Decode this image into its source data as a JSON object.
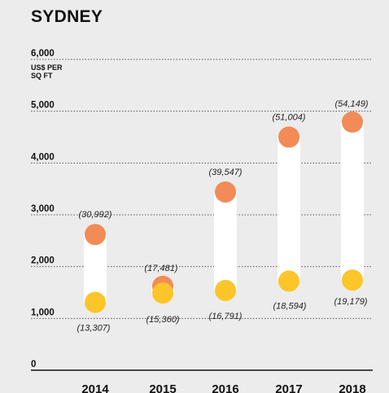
{
  "chart_data": {
    "type": "scatter",
    "title": "SYDNEY",
    "ylabel": "US$ PER SQ FT",
    "ylim": [
      0,
      6000
    ],
    "yticks": [
      "0",
      "1,000",
      "2,000",
      "3,000",
      "4,000",
      "5,000",
      "6,000"
    ],
    "grid": true,
    "categories": [
      "2014",
      "2015",
      "2016",
      "2017",
      "2018"
    ],
    "series": [
      {
        "color": "#f28b55",
        "values": [
          2620,
          1620,
          3440,
          4500,
          4790
        ],
        "labels": [
          "(30,992)",
          "(17,481)",
          "(39,547)",
          "(51,004)",
          "(54,149)"
        ]
      },
      {
        "color": "#fcc52a",
        "values": [
          1310,
          1490,
          1540,
          1720,
          1740
        ],
        "labels": [
          "(13,307)",
          "(15,360)",
          "(16,791)",
          "(18,594)",
          "(19,179)"
        ]
      }
    ]
  },
  "colors": {
    "background": "#ececec",
    "range_bar": "#ffffff",
    "grid": "#555555"
  }
}
